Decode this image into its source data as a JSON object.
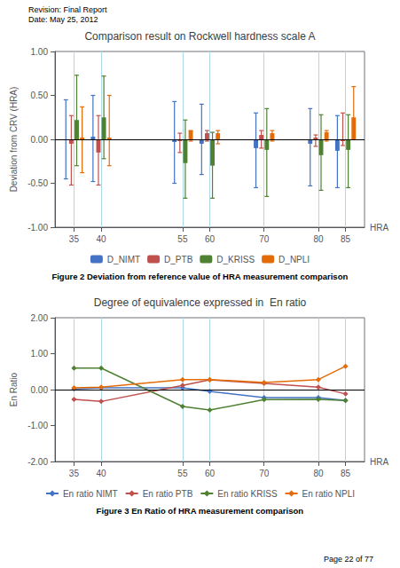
{
  "chart_data": [
    {
      "type": "bar",
      "title": "Comparison result on Rockwell hardness scale A",
      "xlabel": "HRA",
      "ylabel": "Deviation from CRV (HRA)",
      "x": [
        35,
        40,
        55,
        60,
        70,
        80,
        85
      ],
      "xlim": [
        31.5,
        88.5
      ],
      "xticks": [
        35,
        40,
        55,
        60,
        70,
        80,
        85
      ],
      "ylim": [
        -1.0,
        1.0
      ],
      "yticks": [
        {
          "value": -1.0,
          "label": "-1.00"
        },
        {
          "value": -0.5,
          "label": "-0.50"
        },
        {
          "value": 0.0,
          "label": "0.00"
        },
        {
          "value": 0.5,
          "label": "0.50"
        },
        {
          "value": 1.0,
          "label": "1.00"
        }
      ],
      "grid": true,
      "legend": "bottom",
      "series": [
        {
          "name": "D_NIMT",
          "color": "#4472c4",
          "values": [
            0.0,
            0.03,
            -0.03,
            -0.05,
            -0.1,
            -0.05,
            -0.13
          ],
          "upper": [
            0.45,
            0.5,
            0.43,
            0.4,
            0.3,
            0.35,
            0.27
          ],
          "lower": [
            -0.45,
            -0.48,
            -0.5,
            -0.4,
            -0.55,
            -0.53,
            -0.55
          ]
        },
        {
          "name": "D_PTB",
          "color": "#c0504d",
          "values": [
            -0.05,
            -0.15,
            -0.02,
            0.07,
            0.05,
            0.02,
            -0.02
          ],
          "upper": [
            0.27,
            0.27,
            0.07,
            0.1,
            0.1,
            0.05,
            0.3
          ],
          "lower": [
            -0.52,
            -0.52,
            -0.15,
            -0.02,
            -0.1,
            -0.08,
            -0.07
          ]
        },
        {
          "name": "D_KRISS",
          "color": "#4f8133",
          "values": [
            0.22,
            0.25,
            -0.27,
            -0.3,
            -0.12,
            -0.18,
            -0.12
          ],
          "upper": [
            0.73,
            0.72,
            0.22,
            0.08,
            0.35,
            0.28,
            0.28
          ],
          "lower": [
            -0.3,
            -0.22,
            -0.67,
            -0.67,
            -0.65,
            -0.58,
            -0.55
          ]
        },
        {
          "name": "D_NPLI",
          "color": "#e36c09",
          "values": [
            0.02,
            0.02,
            0.1,
            0.07,
            0.07,
            0.08,
            0.25
          ],
          "upper": [
            0.37,
            0.5,
            0.1,
            0.1,
            0.1,
            0.1,
            0.6
          ],
          "lower": [
            -0.38,
            -0.3,
            -0.02,
            -0.05,
            -0.02,
            -0.02,
            0.0
          ]
        }
      ],
      "annotations": [
        "Revision: Final Report",
        "Date: May 25, 2012",
        "Figure 2 Deviation from reference value of HRA measurement comparison"
      ]
    },
    {
      "type": "line",
      "title": "Degree of equivalence expressed in  En ratio",
      "xlabel": "HRA",
      "ylabel": "En Ratio",
      "x": [
        35,
        40,
        55,
        60,
        70,
        80,
        85
      ],
      "xlim": [
        31.5,
        88.5
      ],
      "xticks": [
        35,
        40,
        55,
        60,
        70,
        80,
        85
      ],
      "ylim": [
        -2.0,
        2.0
      ],
      "yticks": [
        {
          "value": -2.0,
          "label": "-2.00"
        },
        {
          "value": -1.0,
          "label": "-1.00"
        },
        {
          "value": 0.0,
          "label": "0.00"
        },
        {
          "value": 1.0,
          "label": "1.00"
        },
        {
          "value": 2.0,
          "label": "2.00"
        }
      ],
      "grid": true,
      "legend": "bottom",
      "marker": "diamond",
      "series": [
        {
          "name": "En ratio NIMT",
          "color": "#4472c4",
          "values": [
            0.02,
            0.05,
            0.05,
            -0.05,
            -0.22,
            -0.22,
            -0.3
          ]
        },
        {
          "name": "En ratio PTB",
          "color": "#c0504d",
          "values": [
            -0.27,
            -0.33,
            0.12,
            0.27,
            0.17,
            0.07,
            -0.12
          ]
        },
        {
          "name": "En ratio KRISS",
          "color": "#4f8133",
          "values": [
            0.6,
            0.6,
            -0.47,
            -0.57,
            -0.28,
            -0.27,
            -0.3
          ]
        },
        {
          "name": "En ratio NPLI",
          "color": "#e36c09",
          "values": [
            0.05,
            0.07,
            0.28,
            0.28,
            0.2,
            0.28,
            0.65
          ]
        }
      ],
      "annotations": [
        "Figure 3 En Ratio of HRA measurement comparison",
        "Page 22 of 77"
      ]
    }
  ]
}
